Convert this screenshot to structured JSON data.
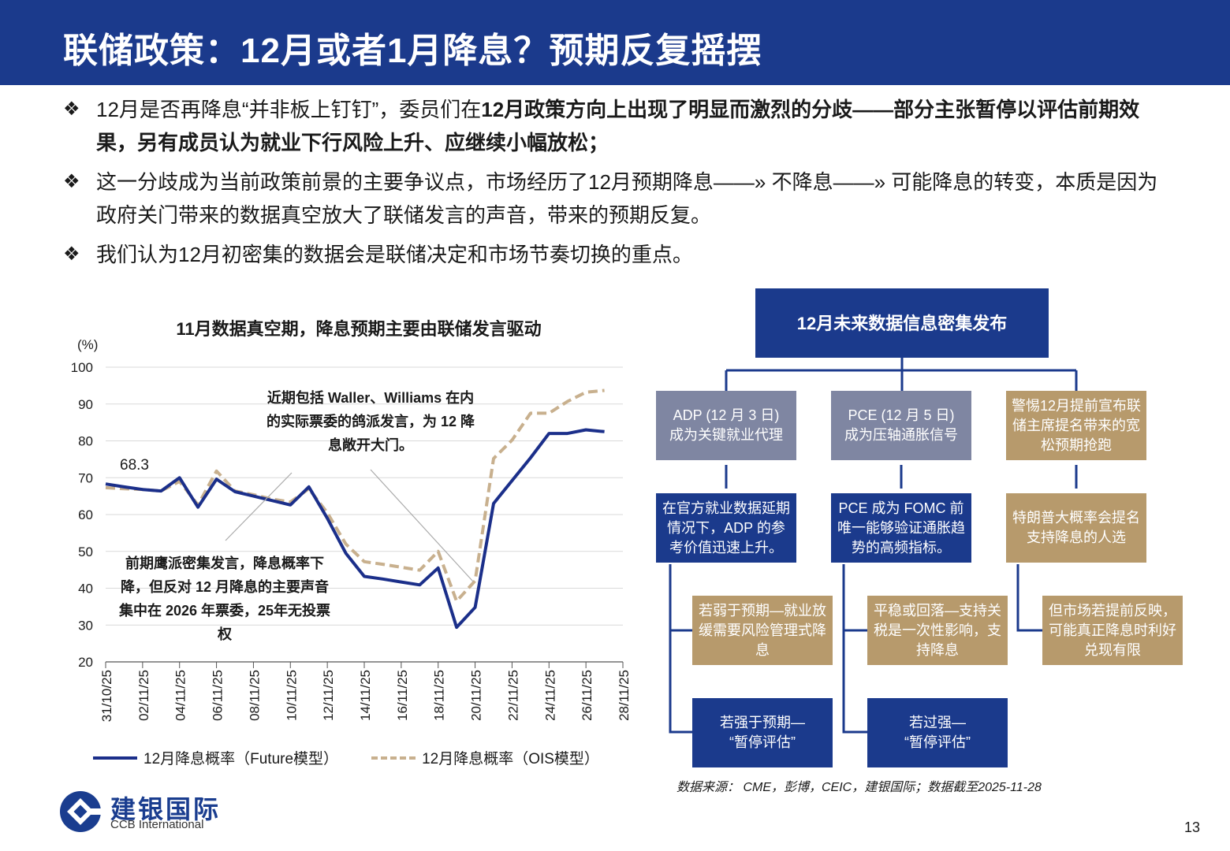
{
  "header": {
    "title": "联储政策：12月或者1月降息？预期反复摇摆"
  },
  "bullets": [
    {
      "mark": "❖",
      "pre": "12月是否再降息“并非板上钉钉”，委员们在",
      "bold": "12月政策方向上出现了明显而激烈的分歧——部分主张暂停以评估前期效果，另有成员认为就业下行风险上升、应继续小幅放松；"
    },
    {
      "mark": "❖",
      "pre": "这一分歧成为当前政策前景的主要争议点，市场经历了12月预期降息——» 不降息——» 可能降息的转变，本质是因为政府关门带来的数据真空放大了联储发言的声音，带来的预期反复。",
      "bold": ""
    },
    {
      "mark": "❖",
      "pre": "我们认为12月初密集的数据会是联储决定和市场节奏切换的重点。",
      "bold": ""
    }
  ],
  "chart_data": {
    "type": "line",
    "title": "11月数据真空期，降息预期主要由联储发言驱动",
    "ylabel": "(%)",
    "ylim": [
      20,
      100
    ],
    "yticks": [
      20,
      30,
      40,
      50,
      60,
      70,
      80,
      90,
      100
    ],
    "grid": true,
    "legend": "bottom",
    "x": [
      "31/10/25",
      "01/11/25",
      "02/11/25",
      "03/11/25",
      "04/11/25",
      "05/11/25",
      "06/11/25",
      "07/11/25",
      "08/11/25",
      "09/11/25",
      "10/11/25",
      "11/11/25",
      "12/11/25",
      "13/11/25",
      "14/11/25",
      "15/11/25",
      "16/11/25",
      "17/11/25",
      "18/11/25",
      "19/11/25",
      "20/11/25",
      "21/11/25",
      "22/11/25",
      "23/11/25",
      "24/11/25",
      "25/11/25",
      "26/11/25",
      "27/11/25",
      "28/11/25"
    ],
    "xticks": [
      "31/10/25",
      "02/11/25",
      "04/11/25",
      "06/11/25",
      "08/11/25",
      "10/11/25",
      "12/11/25",
      "14/11/25",
      "16/11/25",
      "18/11/25",
      "20/11/25",
      "22/11/25",
      "24/11/25",
      "26/11/25",
      "28/11/25"
    ],
    "series": [
      {
        "name": "12月降息概率（Future模型）",
        "color": "#1b2f8a",
        "dash": false,
        "values": [
          68.3,
          67.5,
          66.8,
          66.4,
          70.0,
          62.0,
          69.6,
          66.2,
          65.0,
          63.8,
          62.6,
          67.5,
          59.0,
          49.5,
          43.2,
          42.5,
          41.7,
          40.9,
          45.5,
          29.4,
          34.8,
          63.0,
          69.2,
          75.4,
          82.0,
          82.0,
          83.0,
          82.5,
          null
        ]
      },
      {
        "name": "12月降息概率（OIS模型）",
        "color": "#c8b08e",
        "dash": true,
        "values": [
          67.3,
          67.0,
          66.8,
          66.4,
          69.0,
          62.6,
          71.8,
          66.4,
          65.4,
          64.2,
          63.4,
          67.0,
          60.5,
          52.0,
          47.2,
          46.5,
          45.7,
          44.9,
          50.0,
          36.5,
          42.0,
          75.2,
          80.2,
          87.5,
          87.5,
          90.7,
          93.2,
          93.7,
          null
        ]
      }
    ],
    "annotations": [
      {
        "text": "68.3"
      },
      {
        "text": "近期包括 Waller、Williams 在内的实际票委的鸽派发言，为 12 降息敞开大门。"
      },
      {
        "text": "前期鹰派密集发言，降息概率下降，但反对 12 月降息的主要声音集中在 2026 年票委，25年无投票权"
      }
    ]
  },
  "flow": {
    "top": "12月未来数据信息密集发布",
    "col1": {
      "head": "ADP (12 月 3 日)\n成为关键就业代理",
      "mid": "在官方就业数据延期情况下，ADP 的参考价值迅速上升。",
      "a": "若弱于预期—就业放缓需要风险管理式降息",
      "b": "若强于预期—\n“暂停评估”"
    },
    "col2": {
      "head": "PCE (12 月 5 日)\n成为压轴通胀信号",
      "mid": "PCE 成为 FOMC 前唯一能够验证通胀趋势的高频指标。",
      "a": "平稳或回落—支持关税是一次性影响，支持降息",
      "b": "若过强—\n“暂停评估”"
    },
    "col3": {
      "head": "警惕12月提前宣布联储主席提名带来的宽松预期抢跑",
      "mid": "特朗普大概率会提名支持降息的人选",
      "a": "但市场若提前反映，可能真正降息时利好兑现有限"
    }
  },
  "source": "数据来源： CME，彭博，CEIC，建银国际；数据截至2025-11-28",
  "logo": {
    "cn": "建银国际",
    "en": "CCB International"
  },
  "page": "13"
}
